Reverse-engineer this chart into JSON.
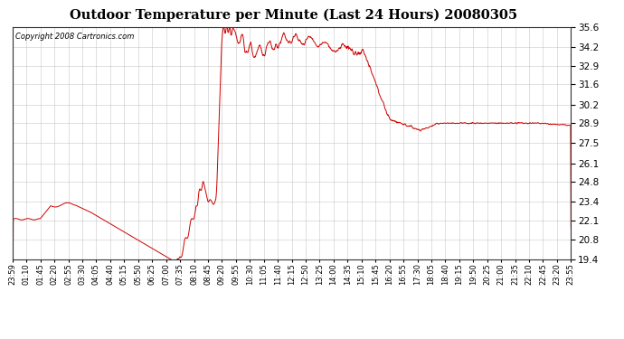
{
  "title": "Outdoor Temperature per Minute (Last 24 Hours) 20080305",
  "copyright": "Copyright 2008 Cartronics.com",
  "line_color": "#cc0000",
  "background_color": "#ffffff",
  "plot_bg_color": "#ffffff",
  "grid_color": "#bbbbbb",
  "ylim": [
    19.4,
    35.6
  ],
  "yticks": [
    19.4,
    20.8,
    22.1,
    23.4,
    24.8,
    26.1,
    27.5,
    28.9,
    30.2,
    31.6,
    32.9,
    34.2,
    35.6
  ],
  "xtick_labels": [
    "23:59",
    "01:10",
    "01:45",
    "02:20",
    "02:55",
    "03:30",
    "04:05",
    "04:40",
    "05:15",
    "05:50",
    "06:25",
    "07:00",
    "07:35",
    "08:10",
    "08:45",
    "09:20",
    "09:55",
    "10:30",
    "11:05",
    "11:40",
    "12:15",
    "12:50",
    "13:25",
    "14:00",
    "14:35",
    "15:10",
    "15:45",
    "16:20",
    "16:55",
    "17:30",
    "18:05",
    "18:40",
    "19:15",
    "19:50",
    "20:25",
    "21:00",
    "21:35",
    "22:10",
    "22:45",
    "23:20",
    "23:55"
  ],
  "figsize": [
    6.9,
    3.75
  ],
  "dpi": 100
}
